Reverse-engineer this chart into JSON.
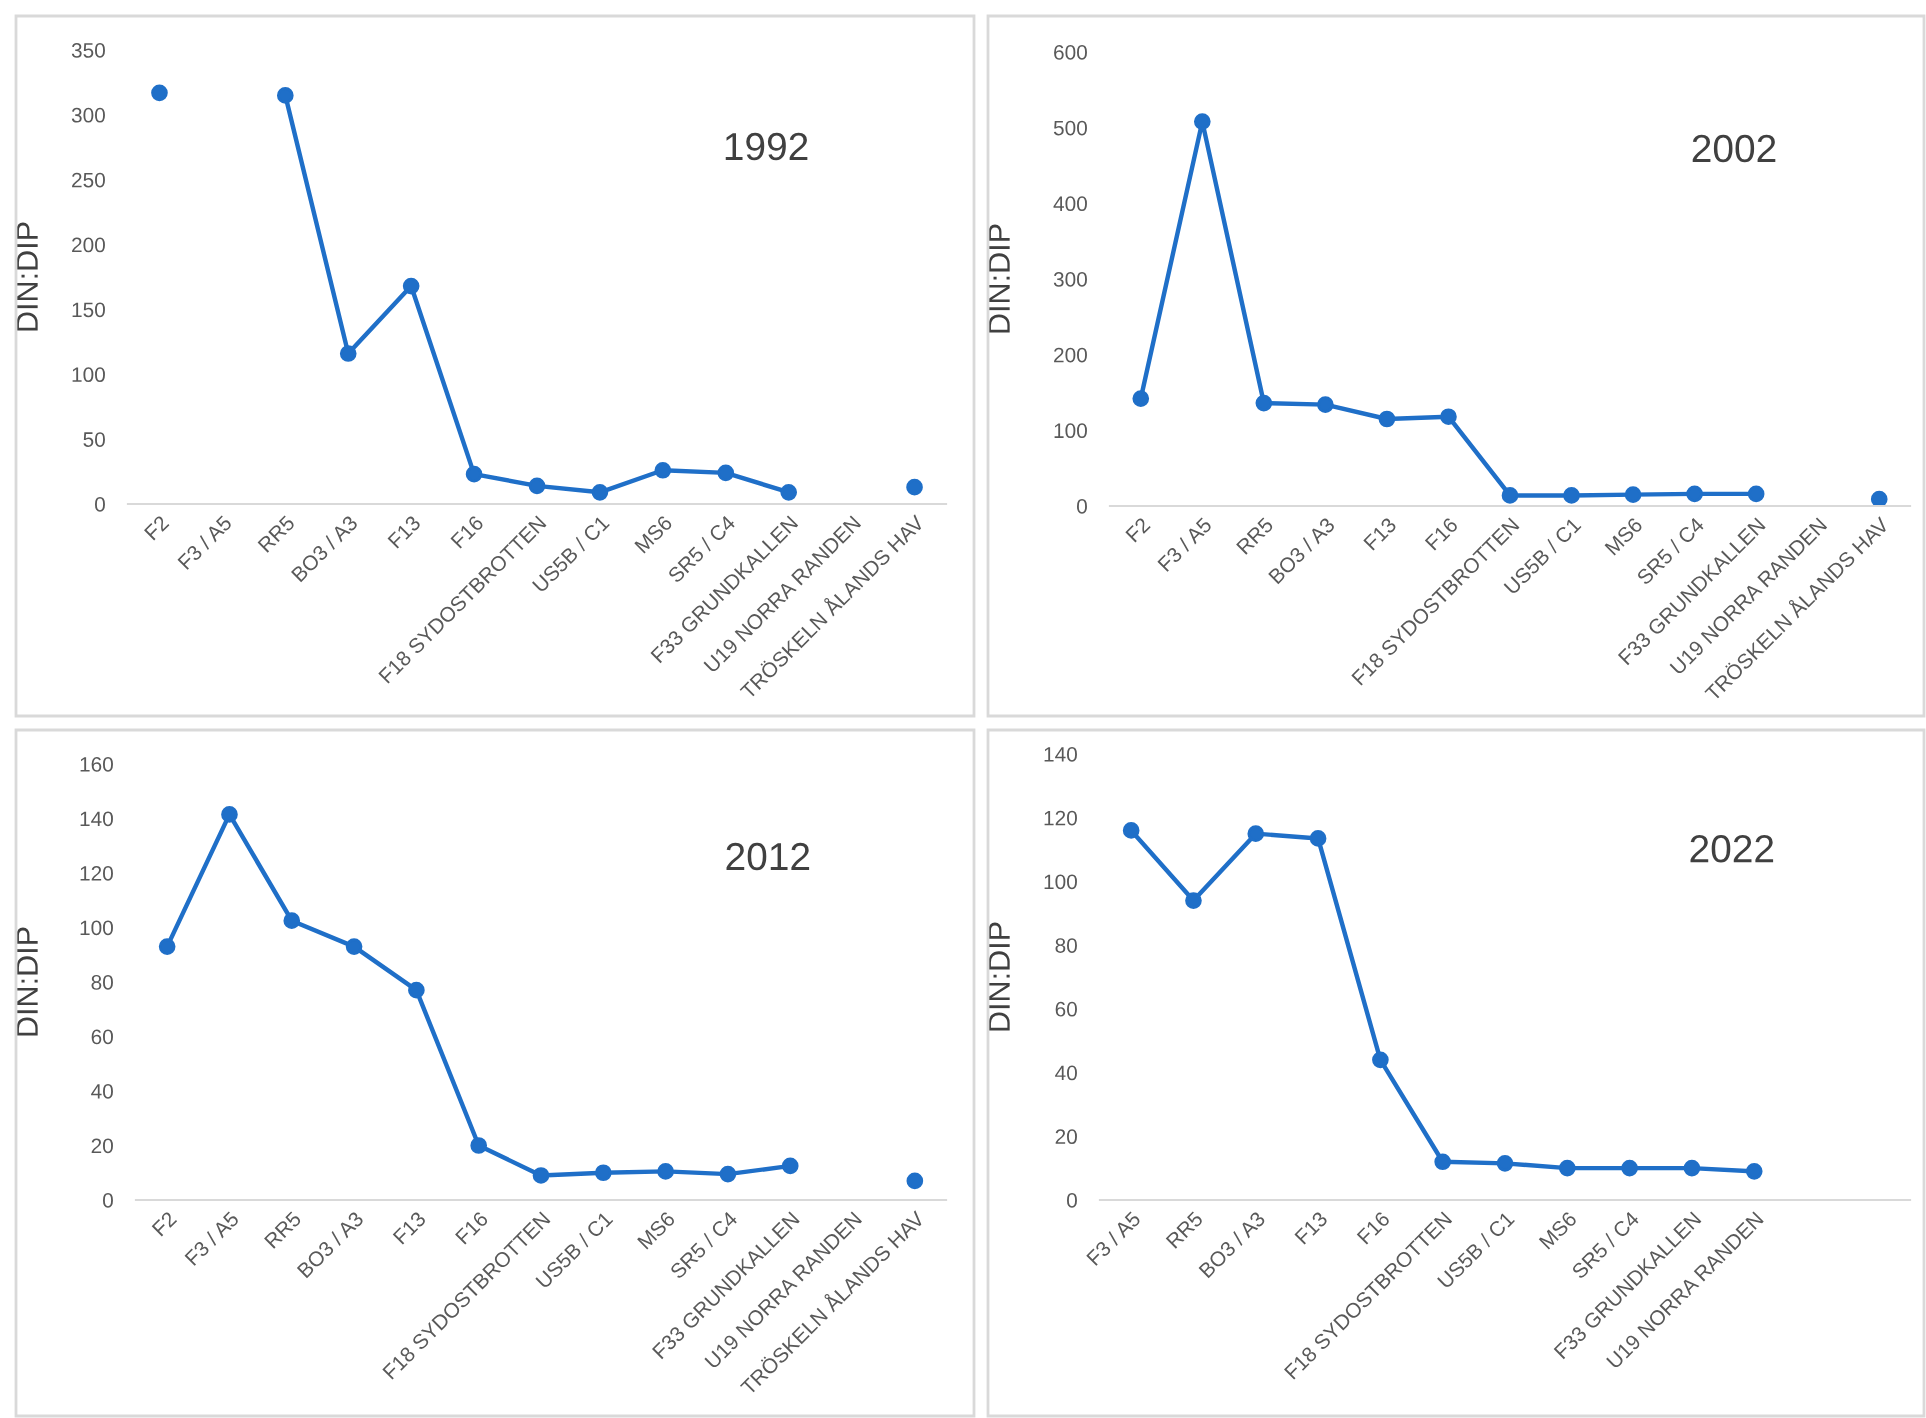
{
  "chart_data": [
    {
      "type": "line",
      "title": "1992",
      "ylabel": "DIN:DIP",
      "marker": "circle",
      "color": "#1f6fc8",
      "categories": [
        "F2",
        "F3 / A5",
        "RR5",
        "BO3 / A3",
        "F13",
        "F16",
        "F18 SYDOSTBROTTEN",
        "US5B / C1",
        "MS6",
        "SR5 / C4",
        "F33 GRUNDKALLEN",
        "U19 NORRA RANDEN",
        "TRÖSKELN ÅLANDS HAV"
      ],
      "values": [
        317,
        null,
        315,
        116,
        168,
        23,
        14,
        9,
        26,
        24,
        9,
        null,
        13
      ],
      "ylim": [
        0,
        350
      ],
      "yticks": [
        0,
        50,
        100,
        150,
        200,
        250,
        300,
        350
      ]
    },
    {
      "type": "line",
      "title": "2002",
      "ylabel": "DIN:DIP",
      "marker": "circle",
      "color": "#1f6fc8",
      "categories": [
        "F2",
        "F3 / A5",
        "RR5",
        "BO3 / A3",
        "F13",
        "F16",
        "F18 SYDOSTBROTTEN",
        "US5B / C1",
        "MS6",
        "SR5 / C4",
        "F33 GRUNDKALLEN",
        "U19 NORRA RANDEN",
        "TRÖSKELN ÅLANDS HAV"
      ],
      "values": [
        142,
        508,
        136,
        134,
        115,
        118,
        14,
        14,
        15,
        16,
        16,
        null,
        9
      ],
      "ylim": [
        0,
        600
      ],
      "yticks": [
        0,
        100,
        200,
        300,
        400,
        500,
        600
      ]
    },
    {
      "type": "line",
      "title": "2012",
      "ylabel": "DIN:DIP",
      "marker": "circle",
      "color": "#1f6fc8",
      "categories": [
        "F2",
        "F3 / A5",
        "RR5",
        "BO3 / A3",
        "F13",
        "F16",
        "F18 SYDOSTBROTTEN",
        "US5B / C1",
        "MS6",
        "SR5 / C4",
        "F33 GRUNDKALLEN",
        "U19 NORRA RANDEN",
        "TRÖSKELN ÅLANDS HAV"
      ],
      "values": [
        93,
        141.5,
        102.5,
        93,
        77,
        20,
        9,
        10,
        10.5,
        9.5,
        12.5,
        null,
        7
      ],
      "ylim": [
        0,
        160
      ],
      "yticks": [
        0,
        20,
        40,
        60,
        80,
        100,
        120,
        140,
        160
      ]
    },
    {
      "type": "line",
      "title": "2022",
      "ylabel": "DIN:DIP",
      "marker": "circle",
      "color": "#1f6fc8",
      "categories": [
        "F3 / A5",
        "RR5",
        "BO3 / A3",
        "F13",
        "F16",
        "F18 SYDOSTBROTTEN",
        "US5B / C1",
        "MS6",
        "SR5 / C4",
        "F33 GRUNDKALLEN",
        "U19 NORRA RANDEN",
        null,
        null
      ],
      "values": [
        116,
        94,
        115,
        113.5,
        44,
        12,
        11.5,
        10,
        10,
        10,
        9,
        null,
        null
      ],
      "ylim": [
        0,
        140
      ],
      "yticks": [
        0,
        20,
        40,
        60,
        80,
        100,
        120,
        140
      ]
    }
  ]
}
